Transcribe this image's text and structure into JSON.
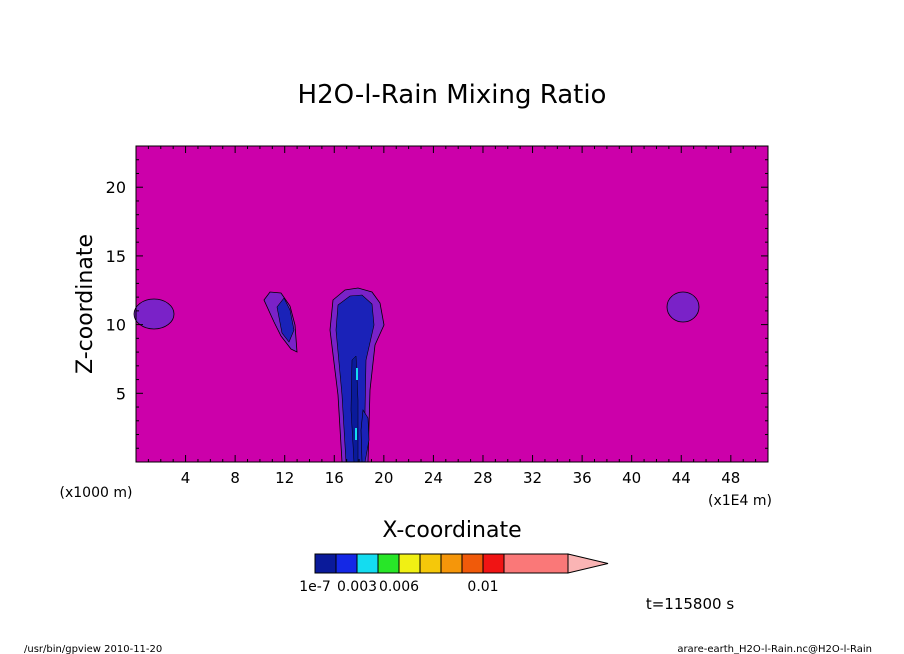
{
  "chart_data": {
    "type": "heatmap",
    "title": "H2O-l-Rain Mixing Ratio",
    "xlabel": "X-coordinate",
    "ylabel": "Z-coordinate",
    "x_unit_label": "(x1E4 m)",
    "y_unit_label": "(x1000 m)",
    "xlim": [
      0,
      51
    ],
    "ylim": [
      0,
      23
    ],
    "x_ticks": [
      4,
      8,
      12,
      16,
      20,
      24,
      28,
      32,
      36,
      40,
      44,
      48
    ],
    "y_ticks": [
      5,
      10,
      15,
      20
    ],
    "background_color": "#cc00aa",
    "colorbar": {
      "colors": [
        "#0a1a9a",
        "#1428e6",
        "#14dcf0",
        "#28e628",
        "#f0f014",
        "#f5c80a",
        "#f5960a",
        "#f05a0a",
        "#f01414",
        "#fa7878",
        "#fab4b4"
      ],
      "tick_labels": [
        {
          "label": "1e-7",
          "index": 0
        },
        {
          "label": "0.003",
          "index": 2
        },
        {
          "label": "0.006",
          "index": 4
        },
        {
          "label": "0.01",
          "index": 8
        }
      ]
    },
    "features": [
      {
        "name": "left-edge-blob",
        "x": 1.5,
        "z": 11,
        "color": "#7a22c8"
      },
      {
        "name": "cloud-12",
        "x": 12,
        "z": 10.5,
        "color": "#7a22c8"
      },
      {
        "name": "core-column-18",
        "x": 18,
        "z": 6,
        "color": "#1a22b8"
      },
      {
        "name": "right-blob-44",
        "x": 44.2,
        "z": 11.2,
        "color": "#7a22c8"
      }
    ],
    "time_label": "t=115800 s"
  },
  "footer": {
    "left": "/usr/bin/gpview  2010-11-20",
    "right": "arare-earth_H2O-l-Rain.nc@H2O-l-Rain"
  }
}
